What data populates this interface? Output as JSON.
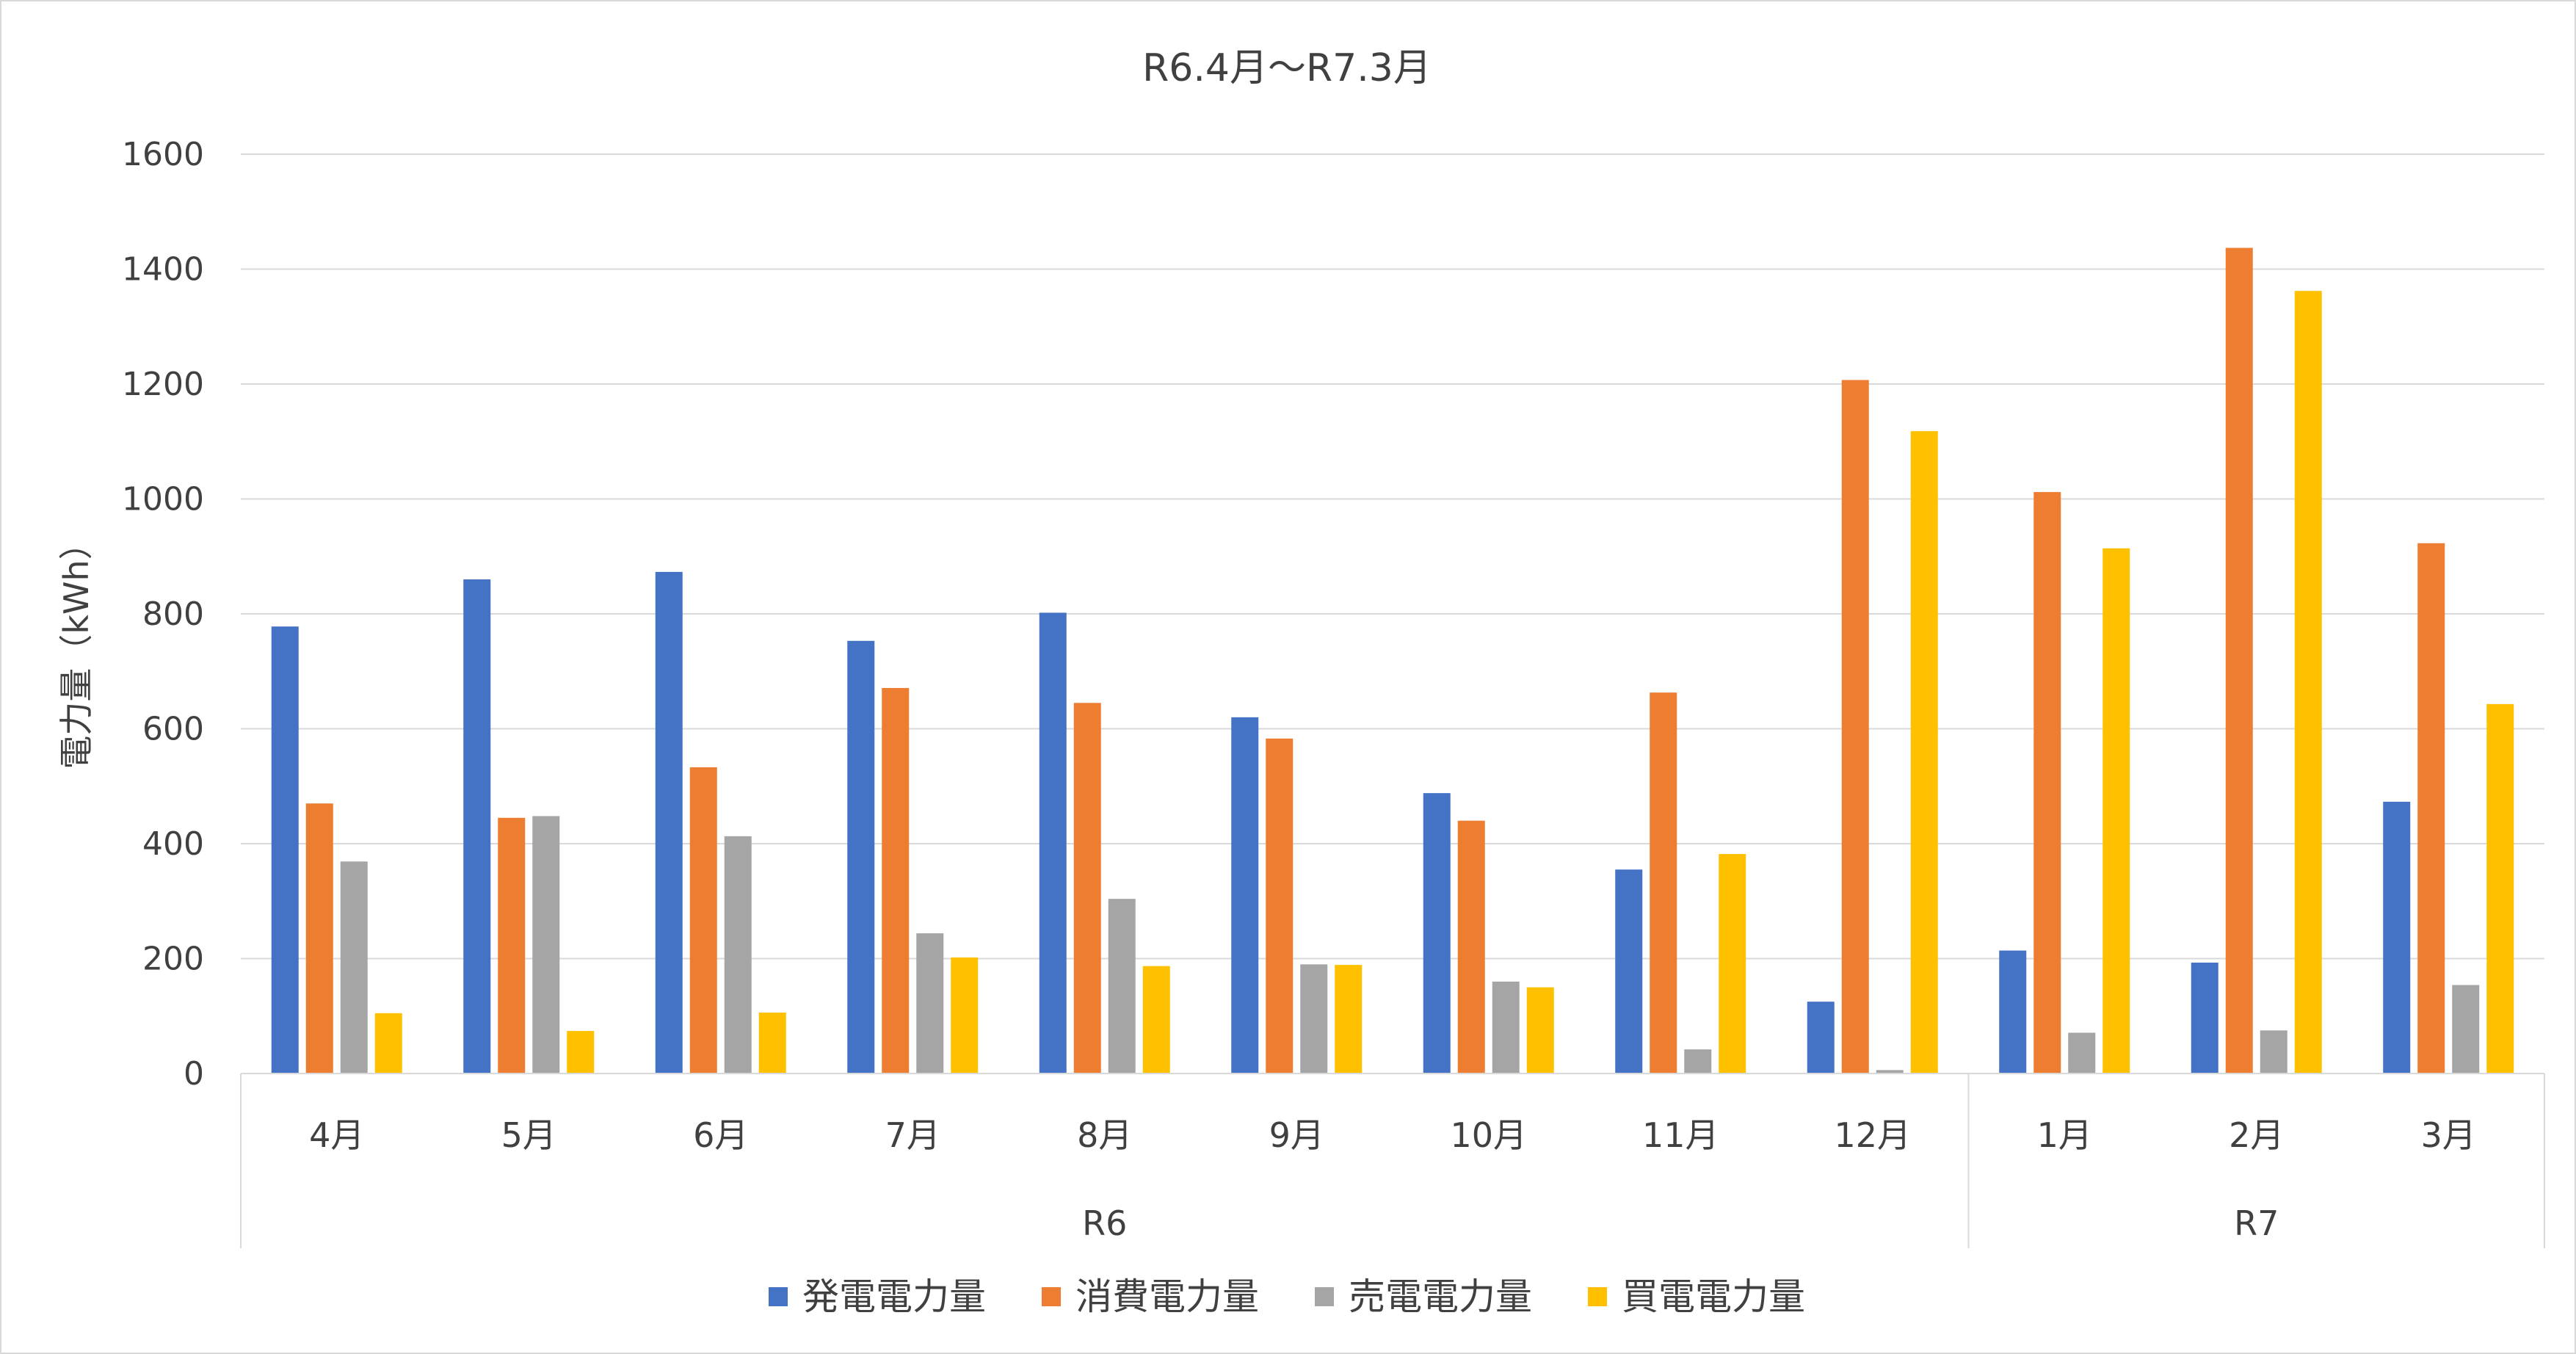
{
  "chart_data": {
    "type": "bar",
    "title": "R6.4月～R7.3月",
    "ylabel": "電力量（kWh）",
    "xlabel": "",
    "ylim": [
      0,
      1600
    ],
    "yticks": [
      0,
      200,
      400,
      600,
      800,
      1000,
      1200,
      1400,
      1600
    ],
    "grid": true,
    "legend_position": "bottom",
    "categories": [
      "4月",
      "5月",
      "6月",
      "7月",
      "8月",
      "9月",
      "10月",
      "11月",
      "12月",
      "1月",
      "2月",
      "3月"
    ],
    "groups": [
      {
        "label": "R6",
        "categories": [
          "4月",
          "5月",
          "6月",
          "7月",
          "8月",
          "9月",
          "10月",
          "11月",
          "12月"
        ]
      },
      {
        "label": "R7",
        "categories": [
          "1月",
          "2月",
          "3月"
        ]
      }
    ],
    "series": [
      {
        "name": "発電電力量",
        "color": "#4472C4",
        "values": [
          778,
          860,
          873,
          753,
          802,
          620,
          488,
          355,
          125,
          214,
          193,
          473
        ]
      },
      {
        "name": "消費電力量",
        "color": "#ED7D31",
        "values": [
          470,
          445,
          533,
          671,
          645,
          583,
          440,
          663,
          1207,
          1012,
          1437,
          923
        ]
      },
      {
        "name": "売電電力量",
        "color": "#A5A5A5",
        "values": [
          369,
          448,
          413,
          244,
          304,
          190,
          160,
          42,
          6,
          71,
          75,
          154
        ]
      },
      {
        "name": "買電電力量",
        "color": "#FFC000",
        "values": [
          105,
          74,
          106,
          202,
          187,
          189,
          150,
          382,
          1118,
          914,
          1362,
          643
        ]
      }
    ]
  }
}
